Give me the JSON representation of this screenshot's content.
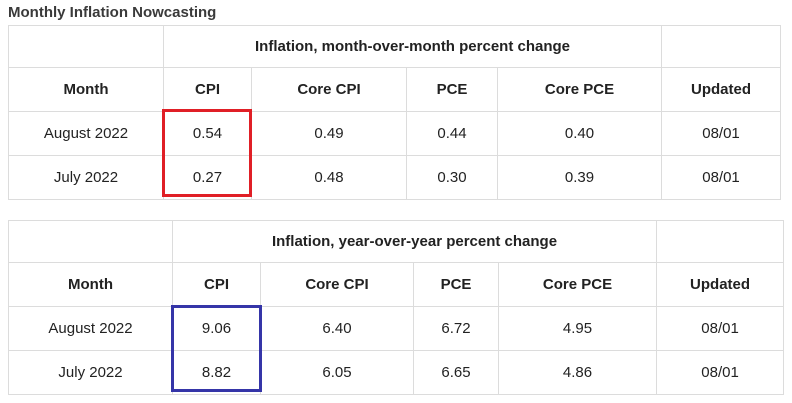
{
  "page_title": "Monthly Inflation Nowcasting",
  "mom_table": {
    "title": "Inflation, month-over-month percent change",
    "headers": [
      "Month",
      "CPI",
      "Core CPI",
      "PCE",
      "Core PCE",
      "Updated"
    ],
    "rows": [
      [
        "August 2022",
        "0.54",
        "0.49",
        "0.44",
        "0.40",
        "08/01"
      ],
      [
        "July 2022",
        "0.27",
        "0.48",
        "0.30",
        "0.39",
        "08/01"
      ]
    ]
  },
  "yoy_table": {
    "title": "Inflation, year-over-year percent change",
    "headers": [
      "Month",
      "CPI",
      "Core CPI",
      "PCE",
      "Core PCE",
      "Updated"
    ],
    "rows": [
      [
        "August 2022",
        "9.06",
        "6.40",
        "6.72",
        "4.95",
        "08/01"
      ],
      [
        "July 2022",
        "8.82",
        "6.05",
        "6.65",
        "4.86",
        "08/01"
      ]
    ]
  },
  "highlights": {
    "mom_cpi_color": "#e01f26",
    "yoy_cpi_color": "#3535a8"
  }
}
